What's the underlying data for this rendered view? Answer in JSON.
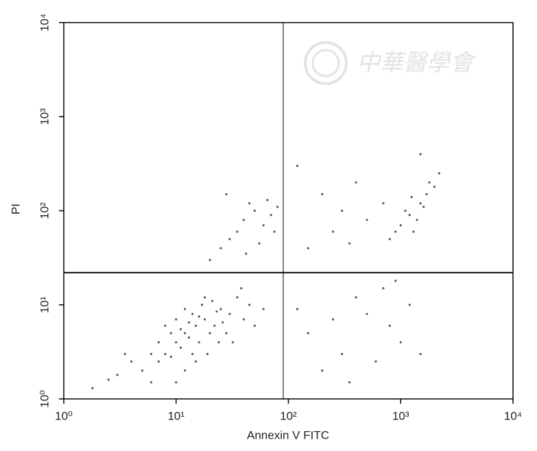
{
  "chart_data": {
    "type": "scatter",
    "x_label": "Annexin V FITC",
    "y_label": "PI",
    "watermark": "中華醫學會",
    "xscale": "log",
    "yscale": "log",
    "xlim": [
      1,
      10000
    ],
    "ylim": [
      1,
      10000
    ],
    "xticks": [
      {
        "value": 1,
        "label": "10⁰"
      },
      {
        "value": 10,
        "label": "10¹"
      },
      {
        "value": 100,
        "label": "10²"
      },
      {
        "value": 1000,
        "label": "10³"
      },
      {
        "value": 10000,
        "label": "10⁴"
      }
    ],
    "yticks": [
      {
        "value": 1,
        "label": "10⁰"
      },
      {
        "value": 10,
        "label": "10¹"
      },
      {
        "value": 100,
        "label": "10²"
      },
      {
        "value": 1000,
        "label": "10³"
      },
      {
        "value": 10000,
        "label": "10⁴"
      }
    ],
    "quadrant_x": 90,
    "quadrant_y": 22,
    "color": "#555555",
    "x": [
      12,
      15,
      10,
      8,
      18,
      20,
      14,
      11,
      9,
      16,
      25,
      13,
      7,
      22,
      6,
      17,
      30,
      28,
      5,
      4,
      10,
      12,
      19,
      24,
      35,
      40,
      3,
      8,
      14,
      21,
      11,
      13,
      16,
      9,
      26,
      32,
      6,
      2.5,
      45,
      18,
      15,
      7,
      23,
      12,
      10,
      3.5,
      50,
      1.8,
      60,
      38,
      30,
      40,
      50,
      25,
      60,
      45,
      35,
      70,
      20,
      55,
      80,
      28,
      65,
      42,
      75,
      1000,
      1200,
      1500,
      1300,
      1700,
      1100,
      1800,
      1400,
      900,
      2000,
      1600,
      1250,
      2200,
      800,
      200,
      300,
      500,
      150,
      400,
      700,
      250,
      120,
      1500,
      350,
      150,
      300,
      500,
      800,
      1000,
      200,
      400,
      600,
      1200,
      250,
      700,
      1500,
      120,
      350,
      900
    ],
    "y": [
      5,
      6,
      4,
      3,
      7,
      5,
      8,
      3.5,
      5,
      4,
      9,
      6.5,
      2.5,
      6,
      3,
      10,
      8,
      5,
      2,
      2.5,
      7,
      9,
      3,
      4,
      12,
      7,
      1.8,
      6,
      3,
      11,
      5.5,
      4.5,
      7.5,
      2.8,
      6.5,
      4,
      1.5,
      1.6,
      10,
      12,
      2.5,
      4,
      8.5,
      2,
      1.5,
      3,
      6,
      1.3,
      9,
      15,
      50,
      80,
      100,
      40,
      70,
      120,
      60,
      90,
      30,
      45,
      110,
      150,
      130,
      35,
      60,
      70,
      90,
      120,
      60,
      150,
      100,
      200,
      80,
      60,
      180,
      110,
      140,
      250,
      50,
      150,
      100,
      80,
      40,
      200,
      120,
      60,
      300,
      400,
      45,
      5,
      3,
      8,
      6,
      4,
      2,
      12,
      2.5,
      10,
      7,
      15,
      3,
      9,
      1.5,
      18
    ]
  }
}
